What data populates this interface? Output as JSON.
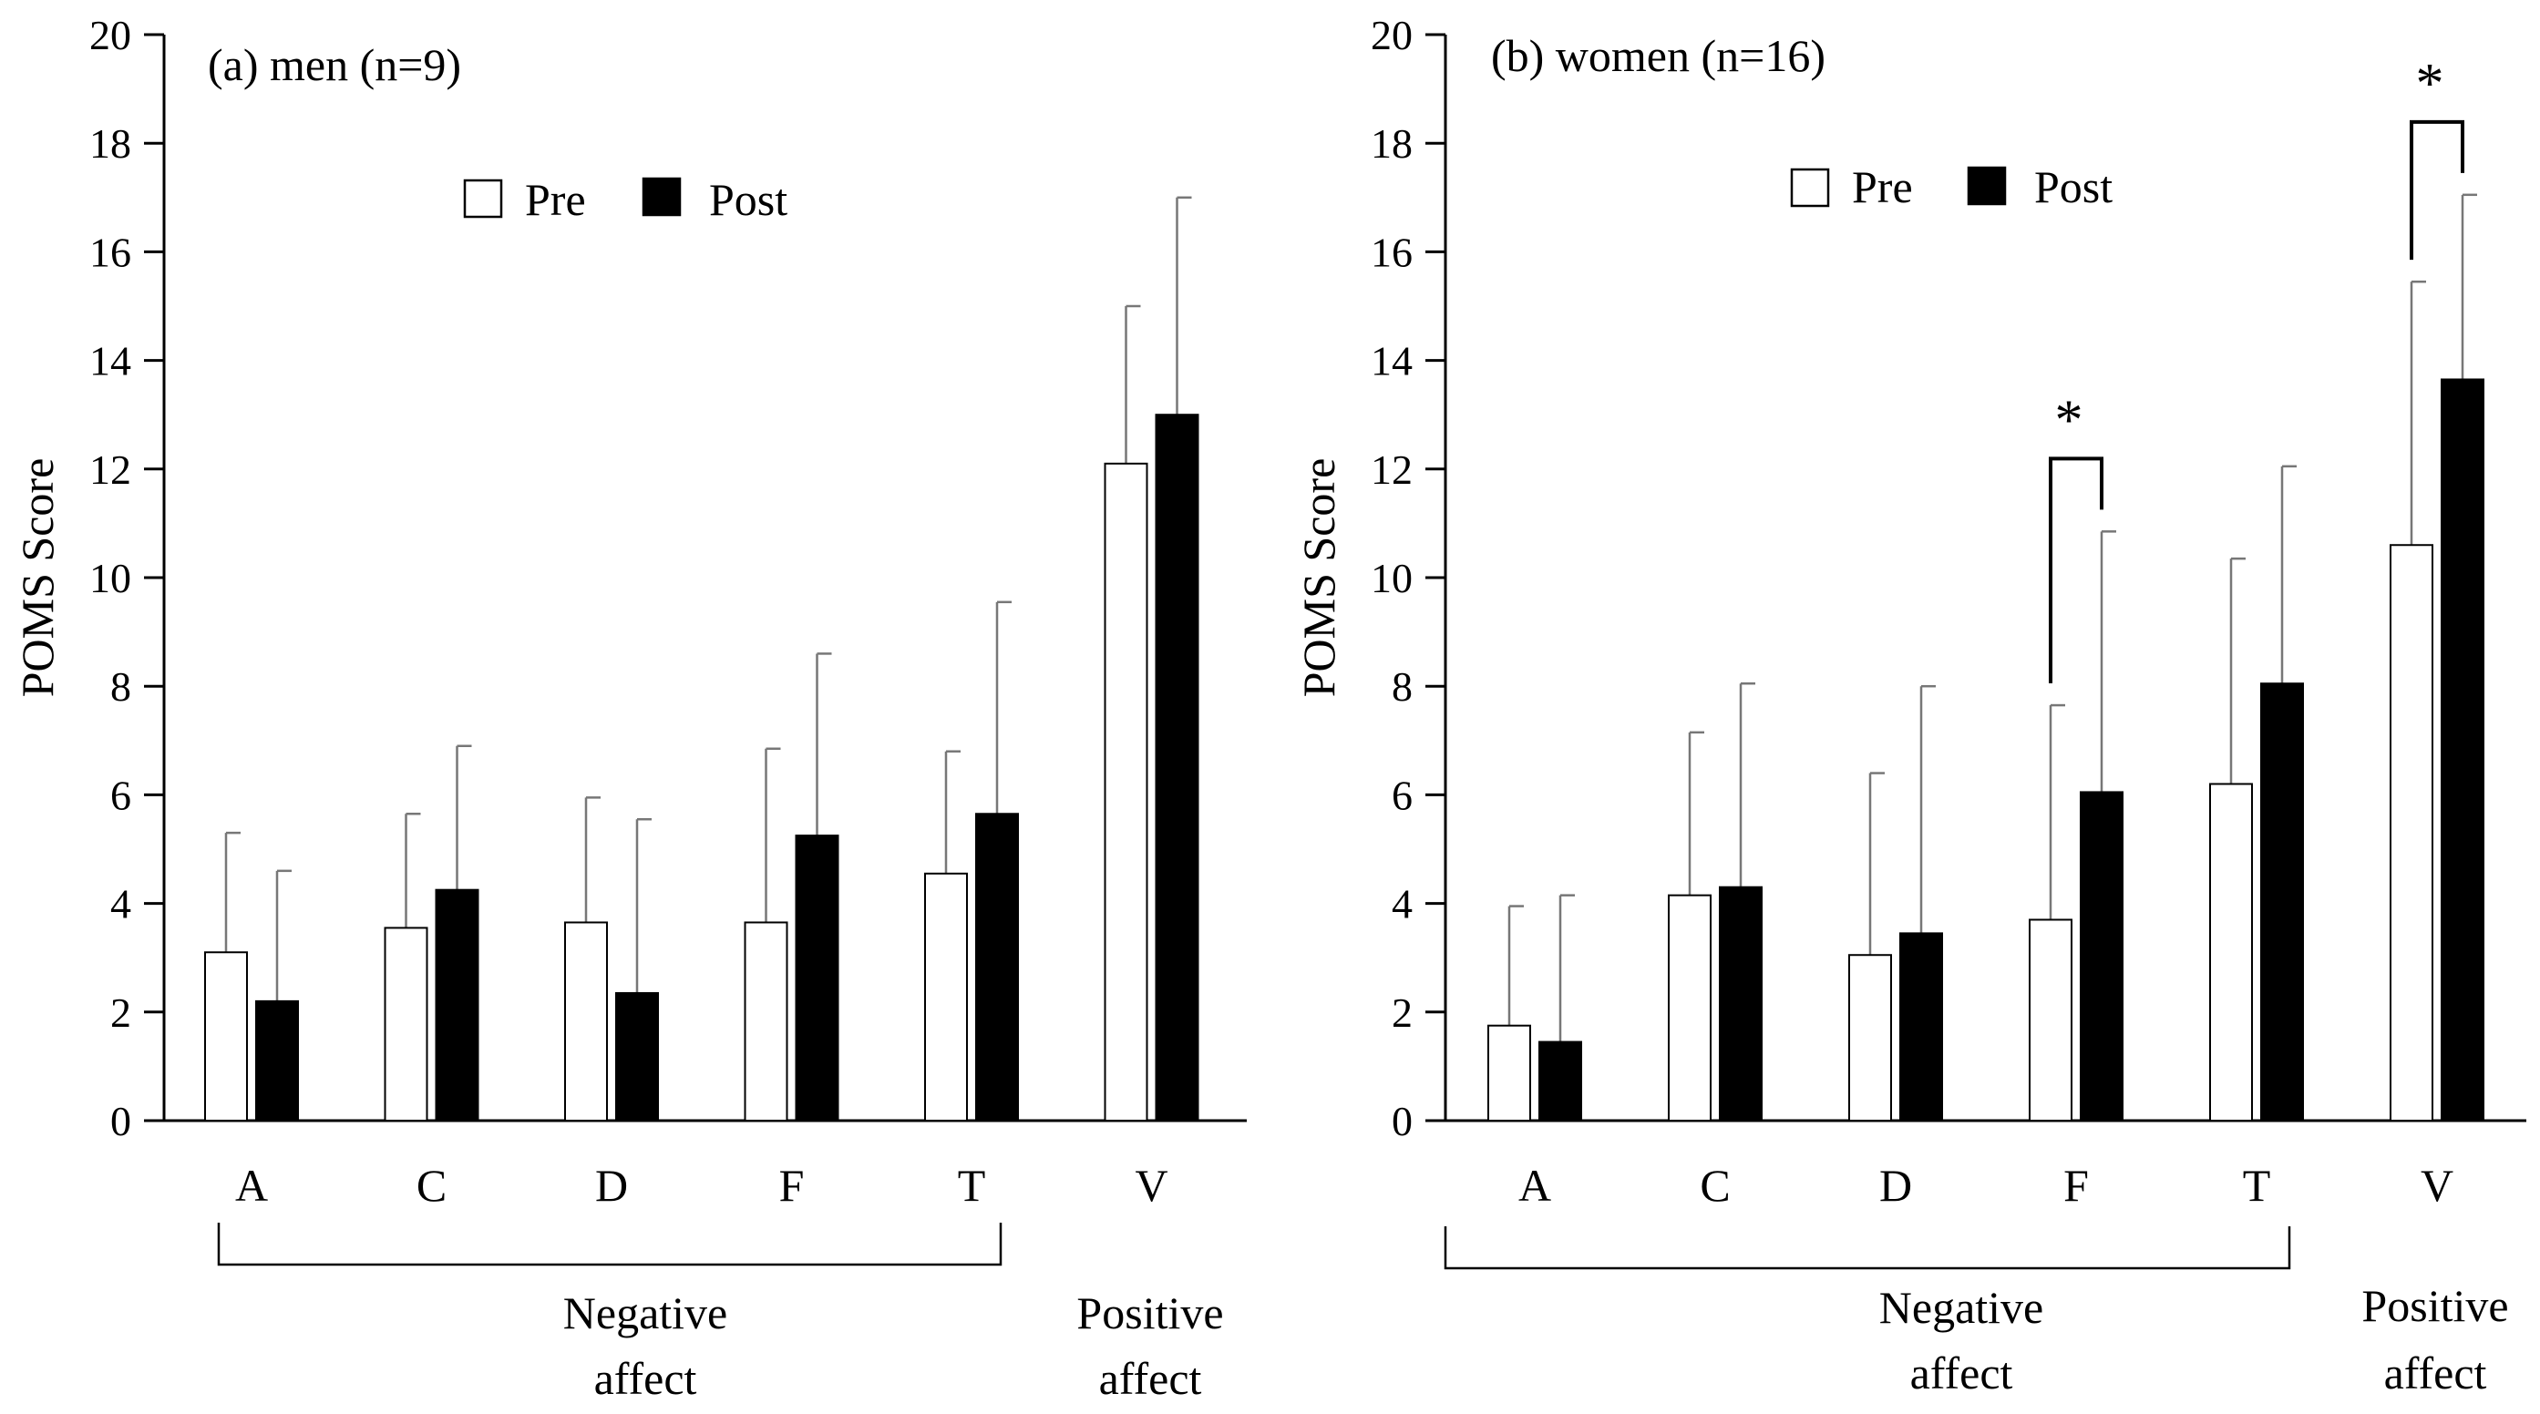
{
  "figure": {
    "colors": {
      "pre": "#ffffff",
      "post": "#000000",
      "axis": "#000000",
      "error": "#777777"
    }
  },
  "chart_data": [
    {
      "type": "bar",
      "title": "(a) men (n=9)",
      "ylabel": "POMS Score",
      "xlabel": "",
      "ylim": [
        0,
        20
      ],
      "yticks": [
        0,
        2,
        4,
        6,
        8,
        10,
        12,
        14,
        16,
        18,
        20
      ],
      "categories": [
        "A",
        "C",
        "D",
        "F",
        "T",
        "V"
      ],
      "legend": {
        "position": "top-center",
        "entries": [
          "Pre",
          "Post"
        ]
      },
      "series": [
        {
          "name": "Pre",
          "values": [
            3.1,
            3.55,
            3.65,
            3.65,
            4.55,
            12.1
          ],
          "error_upper": [
            5.3,
            5.65,
            5.95,
            6.85,
            6.8,
            15.0
          ]
        },
        {
          "name": "Post",
          "values": [
            2.2,
            4.25,
            2.35,
            5.25,
            5.65,
            13.0
          ],
          "error_upper": [
            4.6,
            6.9,
            5.55,
            8.6,
            9.55,
            17.0
          ]
        }
      ],
      "groups": [
        {
          "name": "Negative affect",
          "lines": [
            "Negative",
            "affect"
          ],
          "from": "A",
          "to": "T"
        },
        {
          "name": "Positive affect",
          "lines": [
            "Positive",
            "affect"
          ],
          "from": "V",
          "to": "V"
        }
      ],
      "significance": []
    },
    {
      "type": "bar",
      "title": "(b) women (n=16)",
      "ylabel": "POMS Score",
      "xlabel": "",
      "ylim": [
        0,
        20
      ],
      "yticks": [
        0,
        2,
        4,
        6,
        8,
        10,
        12,
        14,
        16,
        18,
        20
      ],
      "categories": [
        "A",
        "C",
        "D",
        "F",
        "T",
        "V"
      ],
      "legend": {
        "position": "top-center",
        "entries": [
          "Pre",
          "Post"
        ]
      },
      "series": [
        {
          "name": "Pre",
          "values": [
            1.75,
            4.15,
            3.05,
            3.7,
            6.2,
            10.6
          ],
          "error_upper": [
            3.95,
            7.15,
            6.4,
            7.65,
            10.35,
            15.45
          ]
        },
        {
          "name": "Post",
          "values": [
            1.45,
            4.3,
            3.45,
            6.05,
            8.05,
            13.65
          ],
          "error_upper": [
            4.15,
            8.05,
            8.0,
            10.85,
            12.05,
            17.05
          ]
        }
      ],
      "groups": [
        {
          "name": "Negative affect",
          "lines": [
            "Negative",
            "affect"
          ],
          "from": "A",
          "to": "T"
        },
        {
          "name": "Positive affect",
          "lines": [
            "Positive",
            "affect"
          ],
          "from": "V",
          "to": "V"
        }
      ],
      "significance": [
        {
          "category": "F",
          "label": "*"
        },
        {
          "category": "V",
          "label": "*"
        }
      ]
    }
  ]
}
